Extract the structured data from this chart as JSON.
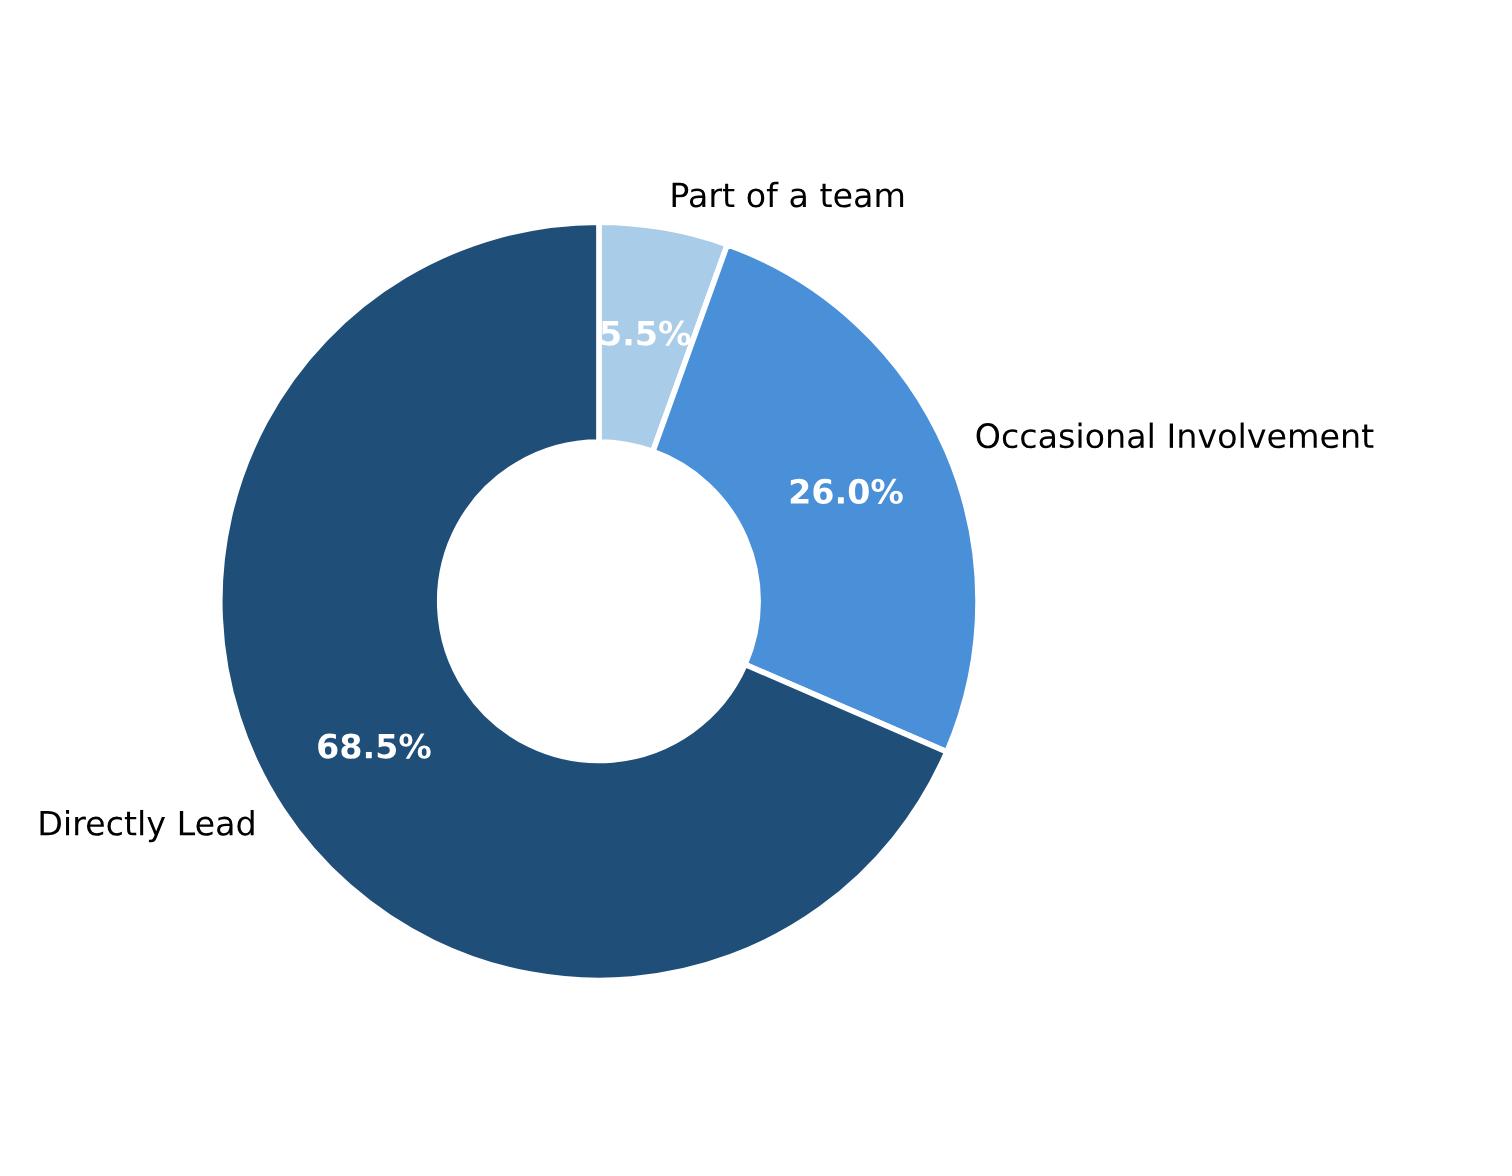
{
  "chart_data": {
    "type": "donut",
    "categories": [
      "Part of a team",
      "Occasional Involvement",
      "Directly Lead"
    ],
    "values": [
      5.5,
      26.0,
      68.5
    ],
    "colors": [
      "#a9cce9",
      "#4a90d9",
      "#1f4e79"
    ],
    "value_labels": [
      "5.5%",
      "26.0%",
      "68.5%"
    ],
    "legend": false
  }
}
